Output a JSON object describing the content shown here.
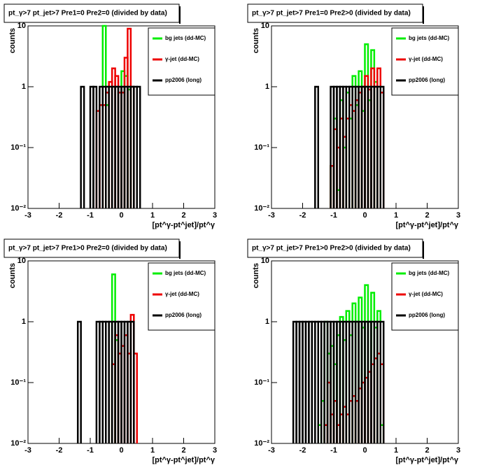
{
  "chart_data": [
    {
      "type": "histogram",
      "title": "pt_γ>7  pt_jet>7  Pre1=0  Pre2=0 (divided by data)",
      "ylabel": "counts",
      "xlabel": "[pt^γ-pt^jet]/pt^γ",
      "xlim": [
        -3,
        3
      ],
      "ylim": [
        0.01,
        10
      ],
      "log_y": true,
      "xticks": [
        -3,
        -2,
        -1,
        0,
        1,
        2,
        3
      ],
      "yticks": [
        {
          "value": 0.01,
          "label": "10⁻²"
        },
        {
          "value": 0.1,
          "label": "10⁻¹"
        },
        1,
        10
      ],
      "series": [
        {
          "name": "bg jets (dd-MC)",
          "color": "#00ee00",
          "bins": [
            -0.7,
            -0.6,
            -0.5,
            -0.4,
            -0.3,
            -0.2,
            -0.1,
            0,
            0.1,
            0.2,
            0.3,
            0.4
          ],
          "values": [
            null,
            10,
            0.5,
            null,
            null,
            null,
            null,
            1.8,
            1.5,
            0.9,
            null
          ]
        },
        {
          "name": "γ-jet (dd-MC)",
          "color": "#ee0000",
          "bins": [
            -0.8,
            -0.7,
            -0.6,
            -0.5,
            -0.4,
            -0.3,
            -0.2,
            -0.1,
            0,
            0.1,
            0.2,
            0.3,
            0.4
          ],
          "values": [
            0.4,
            0.5,
            0.5,
            0.8,
            1.2,
            2,
            1.5,
            0.8,
            0.8,
            3,
            9,
            1
          ]
        },
        {
          "name": "pp2006 (long)",
          "color": "#000000",
          "bins": [
            -1.3,
            -1.2,
            -1.1,
            -1,
            -0.9,
            -0.8,
            -0.7,
            -0.6,
            -0.5,
            -0.4,
            -0.3,
            -0.2,
            -0.1,
            0,
            0.1,
            0.2,
            0.3,
            0.4,
            0.5,
            0.6
          ],
          "values": [
            1,
            null,
            null,
            1,
            1,
            null,
            1,
            1,
            1,
            1,
            1,
            1,
            1,
            1,
            1,
            1,
            1,
            1,
            1
          ]
        }
      ]
    },
    {
      "type": "histogram",
      "title": "pt_γ>7  pt_jet>7  Pre1=0  Pre2>0 (divided by data)",
      "ylabel": "counts",
      "xlabel": "[pt^γ-pt^jet]/pt^γ",
      "xlim": [
        -3,
        3
      ],
      "ylim": [
        0.01,
        10
      ],
      "log_y": true,
      "xticks": [
        -3,
        -2,
        -1,
        0,
        1,
        2,
        3
      ],
      "yticks": [
        {
          "value": 0.01,
          "label": "10⁻²"
        },
        {
          "value": 0.1,
          "label": "10⁻¹"
        },
        1,
        10
      ],
      "series": [
        {
          "name": "bg jets (dd-MC)",
          "color": "#00ee00",
          "bins": [
            -1.1,
            -1,
            -0.9,
            -0.8,
            -0.7,
            -0.6,
            -0.5,
            -0.4,
            -0.3,
            -0.2,
            -0.1,
            0,
            0.1,
            0.2,
            0.3,
            0.4
          ],
          "values": [
            0.05,
            0.3,
            0.02,
            0.6,
            0.1,
            0.8,
            0.3,
            1.5,
            0.5,
            1.8,
            0.4,
            5,
            0.6,
            4,
            1.2
          ]
        },
        {
          "name": "γ-jet (dd-MC)",
          "color": "#ee0000",
          "bins": [
            -1.1,
            -1,
            -0.9,
            -0.8,
            -0.7,
            -0.6,
            -0.5,
            -0.4,
            -0.3,
            -0.2,
            -0.1,
            0,
            0.1,
            0.2,
            0.3,
            0.4,
            0.5,
            0.6
          ],
          "values": [
            0.05,
            0.2,
            0.1,
            0.3,
            0.15,
            0.3,
            0.5,
            0.4,
            0.6,
            0.8,
            1,
            1.5,
            0.9,
            2,
            1,
            2,
            0.8
          ]
        },
        {
          "name": "pp2006 (long)",
          "color": "#000000",
          "bins": [
            -1.6,
            -1.5,
            -1.4,
            -1.3,
            -1.2,
            -1.1,
            -1,
            -0.9,
            -0.8,
            -0.7,
            -0.6,
            -0.5,
            -0.4,
            -0.3,
            -0.2,
            -0.1,
            0,
            0.1,
            0.2,
            0.3,
            0.4,
            0.5,
            0.6
          ],
          "values": [
            1,
            null,
            null,
            null,
            null,
            1,
            1,
            1,
            1,
            1,
            1,
            1,
            1,
            1,
            1,
            1,
            1,
            1,
            1,
            1,
            1,
            1
          ]
        }
      ]
    },
    {
      "type": "histogram",
      "title": "pt_γ>7  pt_jet>7  Pre1>0  Pre2=0 (divided by data)",
      "ylabel": "counts",
      "xlabel": "[pt^γ-pt^jet]/pt^γ",
      "xlim": [
        -3,
        3
      ],
      "ylim": [
        0.01,
        10
      ],
      "log_y": true,
      "xticks": [
        -3,
        -2,
        -1,
        0,
        1,
        2,
        3
      ],
      "yticks": [
        {
          "value": 0.01,
          "label": "10⁻²"
        },
        {
          "value": 0.1,
          "label": "10⁻¹"
        },
        1,
        10
      ],
      "series": [
        {
          "name": "bg jets (dd-MC)",
          "color": "#00ee00",
          "bins": [
            -0.4,
            -0.3,
            -0.2,
            -0.1
          ],
          "values": [
            null,
            6,
            0.5
          ]
        },
        {
          "name": "γ-jet (dd-MC)",
          "color": "#ee0000",
          "bins": [
            -0.3,
            -0.2,
            -0.1,
            0,
            0.1,
            0.2,
            0.3,
            0.4,
            0.5
          ],
          "values": [
            0.2,
            0.6,
            0.3,
            0.4,
            0.6,
            0.3,
            1.3,
            0.3
          ]
        },
        {
          "name": "pp2006 (long)",
          "color": "#000000",
          "bins": [
            -1.4,
            -1.3,
            -1.2,
            -1.1,
            -1,
            -0.9,
            -0.8,
            -0.7,
            -0.6,
            -0.5,
            -0.4,
            -0.3,
            -0.2,
            -0.1,
            0,
            0.1,
            0.2,
            0.3,
            0.4
          ],
          "values": [
            1,
            null,
            null,
            null,
            null,
            null,
            1,
            1,
            1,
            1,
            1,
            1,
            1,
            1,
            1,
            1,
            1,
            1
          ]
        }
      ]
    },
    {
      "type": "histogram",
      "title": "pt_γ>7  pt_jet>7  Pre1>0  Pre2>0 (divided by data)",
      "ylabel": "counts",
      "xlabel": "[pt^γ-pt^jet]/pt^γ",
      "xlim": [
        -3,
        3
      ],
      "ylim": [
        0.01,
        10
      ],
      "log_y": true,
      "xticks": [
        -3,
        -2,
        -1,
        0,
        1,
        2,
        3
      ],
      "yticks": [
        {
          "value": 0.01,
          "label": "10⁻²"
        },
        {
          "value": 0.1,
          "label": "10⁻¹"
        },
        1,
        10
      ],
      "series": [
        {
          "name": "bg jets (dd-MC)",
          "color": "#00ee00",
          "bins": [
            -1.5,
            -1.4,
            -1.3,
            -1.2,
            -1.1,
            -1,
            -0.9,
            -0.8,
            -0.7,
            -0.6,
            -0.5,
            -0.4,
            -0.3,
            -0.2,
            -0.1,
            0,
            0.1,
            0.2,
            0.3,
            0.4,
            0.5,
            0.6
          ],
          "values": [
            0.02,
            0.05,
            1,
            0.3,
            0.4,
            0.2,
            0.6,
            1.2,
            0.5,
            1.5,
            0.6,
            2,
            1,
            2.5,
            0.8,
            4,
            1,
            3,
            0.8,
            1.5,
            0.02
          ]
        },
        {
          "name": "γ-jet (dd-MC)",
          "color": "#ee0000",
          "bins": [
            -1.3,
            -1.2,
            -1.1,
            -1,
            -0.9,
            -0.8,
            -0.7,
            -0.6,
            -0.5,
            -0.4,
            -0.3,
            -0.2,
            -0.1,
            0,
            0.1,
            0.2,
            0.3,
            0.4,
            0.5,
            0.6
          ],
          "values": [
            0.02,
            0.1,
            0.03,
            0.05,
            0.02,
            0.03,
            0.04,
            0.03,
            0.05,
            0.06,
            0.05,
            0.08,
            0.1,
            0.12,
            0.15,
            0.2,
            0.25,
            0.3,
            0.2
          ]
        },
        {
          "name": "pp2006 (long)",
          "color": "#000000",
          "bins": [
            -2.3,
            -2.2,
            -2.1,
            -2,
            -1.9,
            -1.8,
            -1.7,
            -1.6,
            -1.5,
            -1.4,
            -1.3,
            -1.2,
            -1.1,
            -1,
            -0.9,
            -0.8,
            -0.7,
            -0.6,
            -0.5,
            -0.4,
            -0.3,
            -0.2,
            -0.1,
            0,
            0.1,
            0.2,
            0.3,
            0.4,
            0.5,
            0.6
          ],
          "values": [
            1,
            1,
            1,
            1,
            1,
            1,
            1,
            1,
            1,
            1,
            1,
            1,
            1,
            1,
            1,
            1,
            1,
            1,
            1,
            1,
            1,
            1,
            1,
            1,
            1,
            1,
            1,
            1,
            1
          ]
        }
      ]
    }
  ]
}
